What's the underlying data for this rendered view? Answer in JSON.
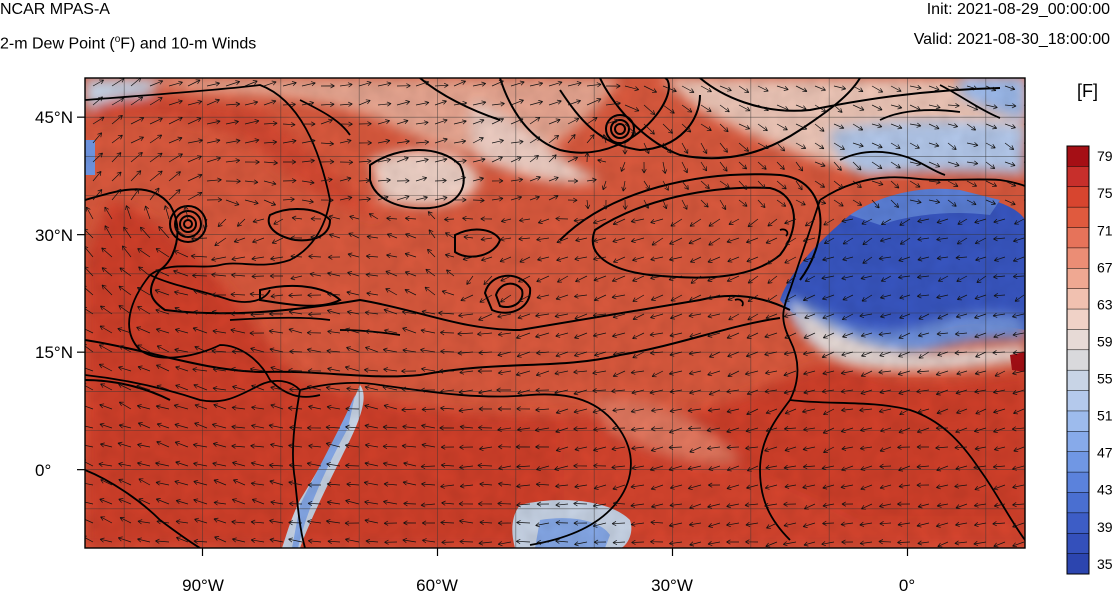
{
  "header": {
    "model": "NCAR MPAS-A",
    "field_prefix": "2-m Dew Point (",
    "field_degree": "o",
    "field_suffix": "F) and 10-m Winds",
    "init_label": "Init: 2021-08-29_00:00:00",
    "valid_label": "Valid: 2021-08-30_18:00:00"
  },
  "map": {
    "lon_ticks": [
      "90°W",
      "60°W",
      "30°W",
      "0°"
    ],
    "lat_ticks": [
      "45°N",
      "30°N",
      "15°N",
      "0°"
    ],
    "lon_range": [
      -105,
      15
    ],
    "lat_range": [
      -10,
      50
    ],
    "features": {
      "hurricane_center": {
        "lon": -90.5,
        "lat": 31.2
      },
      "cutoff_low": {
        "lon": -37.5,
        "lat": 43.5
      },
      "tropical_low": {
        "lon": -57.0,
        "lat": 22.5
      }
    }
  },
  "colorbar": {
    "unit": "[F]",
    "labels": [
      "79",
      "75",
      "71",
      "67",
      "63",
      "59",
      "55",
      "51",
      "47",
      "43",
      "39",
      "35"
    ],
    "colors": [
      "#a50f15",
      "#c72f2b",
      "#d7452f",
      "#e05a3e",
      "#e6735a",
      "#eb8d75",
      "#efa892",
      "#f1c1b0",
      "#f0d2c7",
      "#e7dad6",
      "#d9d9dc",
      "#c8d4e6",
      "#b4c9ec",
      "#9dbbed",
      "#87aaea",
      "#7097e4",
      "#5b82dc",
      "#4a6fd1",
      "#3d5dc6",
      "#3450bb",
      "#2c45af"
    ]
  }
}
